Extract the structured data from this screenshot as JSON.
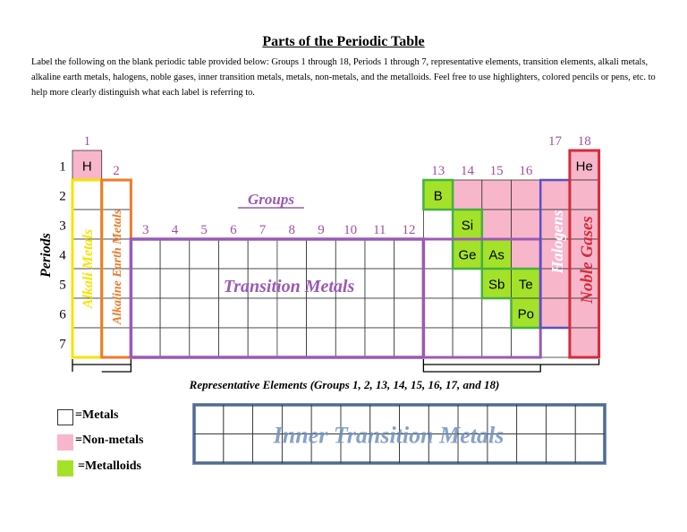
{
  "title": "Parts of the Periodic Table",
  "instructions": "Label the following on the blank periodic table provided below:  Groups 1 through 18, Periods 1 through 7, representative elements, transition elements, alkali metals, alkaline earth metals, halogens, noble gases, inner transition metals, metals, non-metals, and the metalloids.  Feel free to use highlighters, colored pencils or pens, etc. to help more clearly distinguish what each label is referring to.",
  "colors": {
    "nonmetal": "#f8b6cb",
    "metalloid": "#a4e22a",
    "group_label": "#a34fa0",
    "transition": "#9b59b6",
    "alkali": "#f5e400",
    "alkaline": "#f07a28",
    "halogen": "#5b4fc8",
    "noble": "#d62b38",
    "metalloid_border": "#46b040",
    "inner_transition": "#7090c0"
  },
  "group_numbers": [
    "1",
    "2",
    "3",
    "4",
    "5",
    "6",
    "7",
    "8",
    "9",
    "10",
    "11",
    "12",
    "13",
    "14",
    "15",
    "16",
    "17",
    "18"
  ],
  "period_numbers": [
    "1",
    "2",
    "3",
    "4",
    "5",
    "6",
    "7"
  ],
  "elements": [
    {
      "symbol": "H",
      "group": 1,
      "period": 1,
      "category": "nonmetal"
    },
    {
      "symbol": "He",
      "group": 18,
      "period": 1,
      "category": "nonmetal"
    },
    {
      "symbol": "B",
      "group": 13,
      "period": 2,
      "category": "metalloid"
    },
    {
      "symbol": "Si",
      "group": 14,
      "period": 3,
      "category": "metalloid"
    },
    {
      "symbol": "Ge",
      "group": 14,
      "period": 4,
      "category": "metalloid"
    },
    {
      "symbol": "As",
      "group": 15,
      "period": 4,
      "category": "metalloid"
    },
    {
      "symbol": "Sb",
      "group": 15,
      "period": 5,
      "category": "metalloid"
    },
    {
      "symbol": "Te",
      "group": 16,
      "period": 5,
      "category": "metalloid"
    },
    {
      "symbol": "Po",
      "group": 16,
      "period": 6,
      "category": "metalloid"
    }
  ],
  "nonmetal_cells": [
    [
      14,
      2
    ],
    [
      15,
      2
    ],
    [
      16,
      2
    ],
    [
      17,
      2
    ],
    [
      18,
      2
    ],
    [
      15,
      3
    ],
    [
      16,
      3
    ],
    [
      17,
      3
    ],
    [
      18,
      3
    ],
    [
      16,
      4
    ],
    [
      17,
      4
    ],
    [
      18,
      4
    ],
    [
      17,
      5
    ],
    [
      18,
      5
    ],
    [
      17,
      6
    ],
    [
      18,
      6
    ],
    [
      18,
      7
    ]
  ],
  "labels": {
    "groups": "Groups",
    "periods": "Periods",
    "transition_metals": "Transition Metals",
    "alkali_metals": "Alkali Metals",
    "alkaline_earth_metals": "Alkaline Earth Metals",
    "halogens": "Halogens",
    "noble_gases": "Noble Gases",
    "representative_elements": "Representative Elements (Groups 1, 2, 13, 14, 15, 16, 17, and 18)",
    "inner_transition_metals": "Inner Transition Metals"
  },
  "legend": [
    {
      "label": "=Metals",
      "category": "metal",
      "color": "#ffffff"
    },
    {
      "label": "=Non-metals",
      "category": "nonmetal",
      "color": "#f8b6cb"
    },
    {
      "label": "=Metalloids",
      "category": "metalloid",
      "color": "#a4e22a"
    }
  ]
}
